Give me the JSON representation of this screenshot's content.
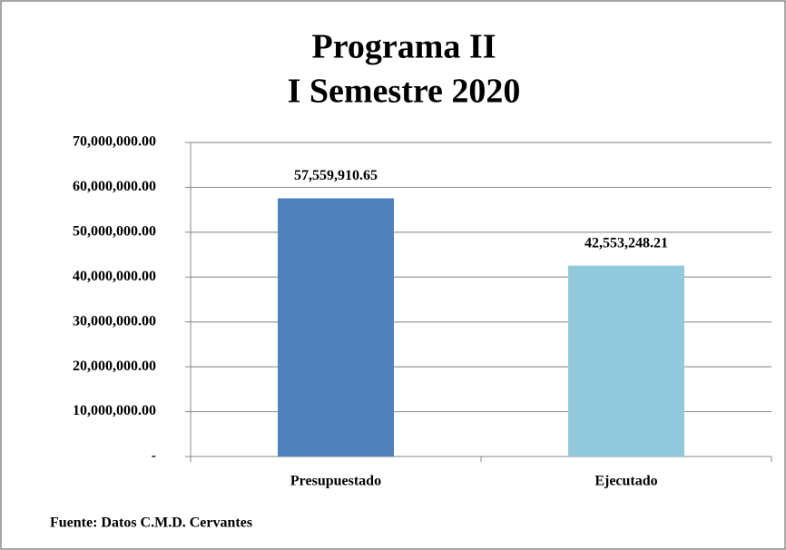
{
  "chart_data": {
    "type": "bar",
    "title": [
      "Programa II",
      "I Semestre 2020"
    ],
    "categories": [
      "Presupuestado",
      "Ejecutado"
    ],
    "values": [
      57559910.65,
      42553248.21
    ],
    "value_labels": [
      "57,559,910.65",
      "42,553,248.21"
    ],
    "colors": [
      "#4f81bd",
      "#92c9dc"
    ],
    "ylim": [
      0,
      70000000
    ],
    "yticks": [
      {
        "value": 0,
        "label": "-"
      },
      {
        "value": 10000000,
        "label": "10,000,000.00"
      },
      {
        "value": 20000000,
        "label": "20,000,000.00"
      },
      {
        "value": 30000000,
        "label": "30,000,000.00"
      },
      {
        "value": 40000000,
        "label": "40,000,000.00"
      },
      {
        "value": 50000000,
        "label": "50,000,000.00"
      },
      {
        "value": 60000000,
        "label": "60,000,000.00"
      },
      {
        "value": 70000000,
        "label": "70,000,000.00"
      }
    ],
    "grid": true,
    "source": "Fuente: Datos C.M.D. Cervantes"
  }
}
